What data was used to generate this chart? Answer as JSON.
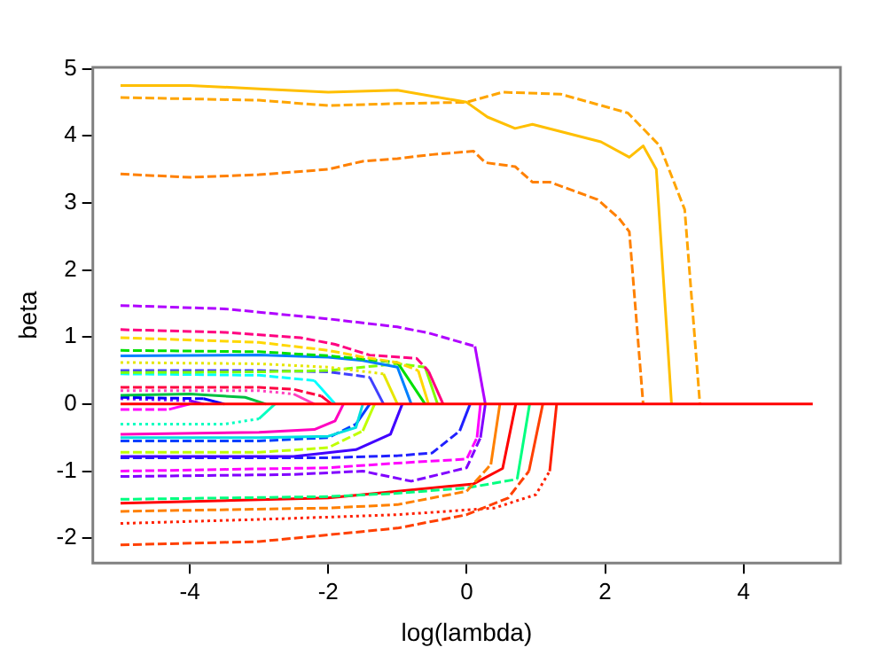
{
  "chart_data": {
    "type": "line",
    "xlabel": "log(lambda)",
    "ylabel": "beta",
    "xlim": [
      -5.4,
      5.4
    ],
    "ylim": [
      -2.37,
      5.02
    ],
    "xticks": [
      -4,
      -2,
      0,
      2,
      4
    ],
    "yticks": [
      -2,
      -1,
      0,
      1,
      2,
      3,
      4,
      5
    ],
    "grid": false,
    "legend": false,
    "marker": "none",
    "series": [
      {
        "color": "#ff0000",
        "line_style": "solid",
        "x": [
          -5,
          5
        ],
        "values": [
          0,
          0
        ]
      },
      {
        "color": "#ffbf00",
        "line_style": "solid",
        "x": [
          -5,
          -4,
          -3,
          -2,
          -1,
          0,
          0.3,
          0.7,
          0.95,
          1.94,
          2.35,
          2.55,
          2.74,
          2.96
        ],
        "values": [
          4.75,
          4.75,
          4.7,
          4.65,
          4.68,
          4.5,
          4.28,
          4.11,
          4.17,
          3.91,
          3.68,
          3.85,
          3.5,
          0
        ]
      },
      {
        "color": "#ffa500",
        "line_style": "dashed",
        "x": [
          -5,
          -3,
          -2,
          -1,
          0,
          0.52,
          1.36,
          2.33,
          2.79,
          3.15,
          3.37
        ],
        "values": [
          4.57,
          4.53,
          4.45,
          4.48,
          4.5,
          4.65,
          4.62,
          4.34,
          3.85,
          2.9,
          0
        ]
      },
      {
        "color": "#ff8000",
        "line_style": "dashed",
        "x": [
          -5,
          -4,
          -3,
          -2,
          -1.5,
          -1,
          -0.5,
          0.1,
          0.27,
          0.7,
          0.95,
          1.2,
          1.89,
          2.2,
          2.35,
          2.55
        ],
        "values": [
          3.43,
          3.38,
          3.42,
          3.5,
          3.62,
          3.66,
          3.72,
          3.77,
          3.6,
          3.54,
          3.31,
          3.31,
          3.05,
          2.77,
          2.57,
          0
        ]
      },
      {
        "color": "#b000ff",
        "line_style": "dashed",
        "x": [
          -5,
          -3.5,
          -2,
          -1,
          -0.55,
          0.12,
          0.27
        ],
        "values": [
          1.47,
          1.42,
          1.27,
          1.15,
          1.06,
          0.86,
          0
        ]
      },
      {
        "color": "#ff0080",
        "line_style": "dashed",
        "x": [
          -5,
          -3.5,
          -2.4,
          -1.9,
          -1.4,
          -0.72,
          -0.55,
          -0.34
        ],
        "values": [
          1.11,
          1.07,
          0.99,
          0.89,
          0.73,
          0.68,
          0.49,
          0
        ]
      },
      {
        "color": "#ffd700",
        "line_style": "dashed",
        "x": [
          -5,
          -3,
          -2,
          -1.5,
          -1,
          -0.7,
          -0.55
        ],
        "values": [
          0.99,
          0.92,
          0.8,
          0.7,
          0.62,
          0.5,
          0
        ]
      },
      {
        "color": "#00e000",
        "line_style": "dashed",
        "x": [
          -5,
          -3,
          -2,
          -1,
          -0.6
        ],
        "values": [
          0.8,
          0.78,
          0.72,
          0.62,
          0
        ]
      },
      {
        "color": "#0080ff",
        "line_style": "solid",
        "x": [
          -5,
          -3,
          -2,
          -1.5,
          -1,
          -0.8
        ],
        "values": [
          0.72,
          0.73,
          0.7,
          0.65,
          0.55,
          0
        ]
      },
      {
        "color": "#e6e600",
        "line_style": "dotted",
        "x": [
          -5,
          -3,
          -2,
          -1.2,
          -1
        ],
        "values": [
          0.62,
          0.6,
          0.55,
          0.45,
          0
        ]
      },
      {
        "color": "#80ff00",
        "line_style": "dashed",
        "x": [
          -5,
          -3,
          -2,
          -1,
          -0.6,
          -0.42
        ],
        "values": [
          0.47,
          0.48,
          0.5,
          0.6,
          0.55,
          0
        ]
      },
      {
        "color": "#4040ff",
        "line_style": "dashed",
        "x": [
          -5,
          -3,
          -2,
          -1.4,
          -1.2
        ],
        "values": [
          0.5,
          0.5,
          0.48,
          0.4,
          0
        ]
      },
      {
        "color": "#00ffff",
        "line_style": "dashed",
        "x": [
          -5,
          -3,
          -2.2,
          -1.9
        ],
        "values": [
          0.45,
          0.43,
          0.35,
          0
        ]
      },
      {
        "color": "#ff0040",
        "line_style": "dashed",
        "x": [
          -5,
          -3,
          -2.5,
          -2.1,
          -1.95
        ],
        "values": [
          0.25,
          0.25,
          0.22,
          0.12,
          0
        ]
      },
      {
        "color": "#ff40c0",
        "line_style": "dotted",
        "x": [
          -5,
          -3,
          -2.5,
          -2.2
        ],
        "values": [
          0.2,
          0.2,
          0.15,
          0
        ]
      },
      {
        "color": "#00c040",
        "line_style": "solid",
        "x": [
          -5,
          -4,
          -3.2,
          -2.9
        ],
        "values": [
          0.13,
          0.15,
          0.1,
          0
        ]
      },
      {
        "color": "#0000ff",
        "line_style": "dashed",
        "x": [
          -5,
          -3.8,
          -3.5
        ],
        "values": [
          0.1,
          0.08,
          0
        ]
      },
      {
        "color": "#8000ff",
        "line_style": "dotted",
        "x": [
          -5,
          -4,
          -3.8
        ],
        "values": [
          0.08,
          0.05,
          0
        ]
      },
      {
        "color": "#ff00ff",
        "line_style": "dashed",
        "x": [
          -5,
          -4.3,
          -4
        ],
        "values": [
          -0.08,
          -0.08,
          0
        ]
      },
      {
        "color": "#00ffc0",
        "line_style": "dotted",
        "x": [
          -5,
          -3.5,
          -3,
          -2.77
        ],
        "values": [
          -0.3,
          -0.3,
          -0.22,
          0
        ]
      },
      {
        "color": "#ff00c0",
        "line_style": "solid",
        "x": [
          -5,
          -3,
          -2.2,
          -1.9,
          -1.78
        ],
        "values": [
          -0.45,
          -0.42,
          -0.38,
          -0.25,
          0
        ]
      },
      {
        "color": "#00e0e0",
        "line_style": "solid",
        "x": [
          -5,
          -3,
          -2,
          -1.6,
          -1.5
        ],
        "values": [
          -0.5,
          -0.5,
          -0.48,
          -0.35,
          0
        ]
      },
      {
        "color": "#0040ff",
        "line_style": "dashed",
        "x": [
          -5,
          -3,
          -2,
          -1.6,
          -1.4
        ],
        "values": [
          -0.55,
          -0.55,
          -0.5,
          -0.3,
          0
        ]
      },
      {
        "color": "#c0ff00",
        "line_style": "dashed",
        "x": [
          -5,
          -3,
          -2,
          -1.5,
          -1.33
        ],
        "values": [
          -0.72,
          -0.72,
          -0.65,
          -0.4,
          0
        ]
      },
      {
        "color": "#4000ff",
        "line_style": "solid",
        "x": [
          -5,
          -2.5,
          -1.6,
          -1.1,
          -0.93
        ],
        "values": [
          -0.78,
          -0.78,
          -0.68,
          -0.45,
          0
        ]
      },
      {
        "color": "#2020ff",
        "line_style": "dashed",
        "x": [
          -5,
          -2,
          -1,
          -0.5,
          -0.1,
          0.05
        ],
        "values": [
          -0.8,
          -0.8,
          -0.77,
          -0.73,
          -0.4,
          0
        ]
      },
      {
        "color": "#ff00ff",
        "line_style": "dashed",
        "x": [
          -5,
          -2,
          -1,
          0,
          0.15,
          0.2
        ],
        "values": [
          -1,
          -0.95,
          -0.88,
          -0.82,
          -0.5,
          0
        ]
      },
      {
        "color": "#8000ff",
        "line_style": "dashed",
        "x": [
          -5,
          -2.5,
          -1.5,
          -0.8,
          0,
          0.2,
          0.27
        ],
        "values": [
          -1.08,
          -1.05,
          -1,
          -1.15,
          -0.95,
          -0.5,
          0
        ]
      },
      {
        "color": "#ff8000",
        "line_style": "dashed",
        "x": [
          -5,
          -2,
          -1,
          0,
          0.35,
          0.48
        ],
        "values": [
          -1.6,
          -1.55,
          -1.5,
          -1.3,
          -0.9,
          0
        ]
      },
      {
        "color": "#00ff80",
        "line_style": "dashed",
        "x": [
          -5,
          -2,
          -1,
          0,
          0.73,
          0.91
        ],
        "values": [
          -1.42,
          -1.38,
          -1.33,
          -1.25,
          -1.12,
          0
        ]
      },
      {
        "color": "#ff4000",
        "line_style": "dashed",
        "x": [
          -5,
          -3,
          -2,
          -1,
          0,
          0.6,
          0.9,
          1.1
        ],
        "values": [
          -2.1,
          -2.05,
          -1.95,
          -1.85,
          -1.65,
          -1.4,
          -1,
          0
        ]
      },
      {
        "color": "#ff2000",
        "line_style": "dotted",
        "x": [
          -5,
          -3,
          -1,
          0.4,
          1,
          1.2,
          1.3
        ],
        "values": [
          -1.78,
          -1.72,
          -1.65,
          -1.55,
          -1.35,
          -1,
          0
        ]
      },
      {
        "color": "#ff0000",
        "line_style": "solid",
        "x": [
          -5,
          -2,
          -1,
          0.1,
          0.52,
          0.71
        ],
        "values": [
          -1.48,
          -1.4,
          -1.3,
          -1.19,
          -0.96,
          0
        ]
      }
    ]
  }
}
